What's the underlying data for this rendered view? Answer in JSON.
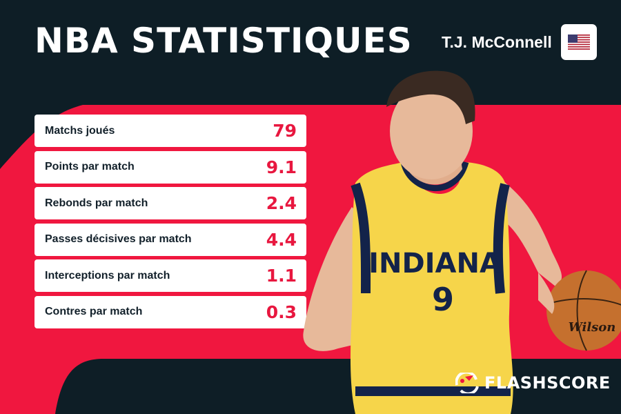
{
  "header": {
    "title": "NBA STATISTIQUES",
    "player_name": "T.J. McConnell",
    "flag_icon": "us-flag-icon"
  },
  "stats": [
    {
      "label": "Matchs joués",
      "value": "79"
    },
    {
      "label": "Points par match",
      "value": "9.1"
    },
    {
      "label": "Rebonds par match",
      "value": "2.4"
    },
    {
      "label": "Passes décisives par match",
      "value": "4.4"
    },
    {
      "label": "Interceptions par match",
      "value": "1.1"
    },
    {
      "label": "Contres par match",
      "value": "0.3"
    }
  ],
  "player_image": {
    "jersey_text": "INDIANA",
    "jersey_number": "9",
    "ball_text": "Wilson"
  },
  "brand": {
    "name": "FLASHSCORE"
  },
  "colors": {
    "background": "#0e1e26",
    "accent": "#f0173f",
    "value_red": "#e8173f",
    "jersey_yellow": "#f6d54a",
    "jersey_navy": "#13234a"
  }
}
